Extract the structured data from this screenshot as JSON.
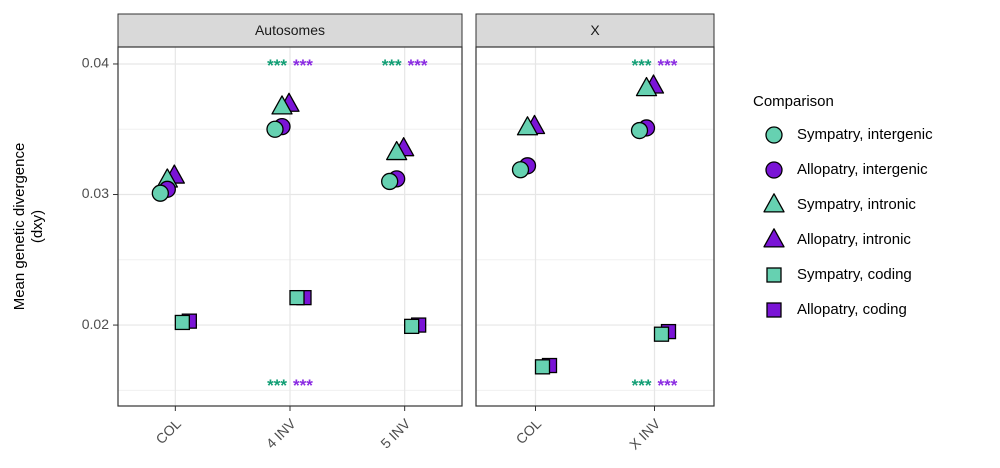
{
  "chart_data": {
    "type": "scatter",
    "ylabel_lines": [
      "Mean genetic divergence",
      "(dxy)"
    ],
    "xlabel": "",
    "ylim": [
      0.0138,
      0.0413
    ],
    "yticks": [
      0.02,
      0.03,
      0.04
    ],
    "ytick_labels": [
      "0.02",
      "0.03",
      "0.04"
    ],
    "grid": true,
    "legend": {
      "title": "Comparison",
      "position": "right",
      "entries": [
        {
          "key": "sym_intergenic",
          "label": "Sympatry, intergenic",
          "shape": "circle",
          "color": "#66d1b1"
        },
        {
          "key": "allo_intergenic",
          "label": "Allopatry, intergenic",
          "shape": "circle",
          "color": "#7a14d6"
        },
        {
          "key": "sym_intronic",
          "label": "Sympatry, intronic",
          "shape": "triangle",
          "color": "#66d1b1"
        },
        {
          "key": "allo_intronic",
          "label": "Allopatry, intronic",
          "shape": "triangle",
          "color": "#7a14d6"
        },
        {
          "key": "sym_coding",
          "label": "Sympatry, coding",
          "shape": "square",
          "color": "#66d1b1"
        },
        {
          "key": "allo_coding",
          "label": "Allopatry, coding",
          "shape": "square",
          "color": "#7a14d6"
        }
      ]
    },
    "significance": {
      "label": "***",
      "colors": {
        "sympatry": "#119e74",
        "allopatry": "#8a2be2"
      }
    },
    "panels": [
      {
        "title": "Autosomes",
        "categories": [
          "COL",
          "4 INV",
          "5 INV"
        ],
        "significance_top": [
          false,
          true,
          true
        ],
        "significance_bottom": [
          false,
          true,
          false
        ],
        "values": {
          "sym_intergenic": [
            0.0301,
            0.035,
            0.031
          ],
          "allo_intergenic": [
            0.0304,
            0.0352,
            0.0312
          ],
          "sym_intronic": [
            0.0311,
            0.0367,
            0.0332
          ],
          "allo_intronic": [
            0.0314,
            0.0369,
            0.0335
          ],
          "sym_coding": [
            0.0202,
            0.0221,
            0.0199
          ],
          "allo_coding": [
            0.0203,
            0.0221,
            0.02
          ]
        }
      },
      {
        "title": "X",
        "categories": [
          "COL",
          "X INV"
        ],
        "significance_top": [
          false,
          true
        ],
        "significance_bottom": [
          false,
          true
        ],
        "values": {
          "sym_intergenic": [
            0.0319,
            0.0349
          ],
          "allo_intergenic": [
            0.0322,
            0.0351
          ],
          "sym_intronic": [
            0.0351,
            0.0381
          ],
          "allo_intronic": [
            0.0352,
            0.0383
          ],
          "sym_coding": [
            0.0168,
            0.0193
          ],
          "allo_coding": [
            0.0169,
            0.0195
          ]
        }
      }
    ]
  }
}
